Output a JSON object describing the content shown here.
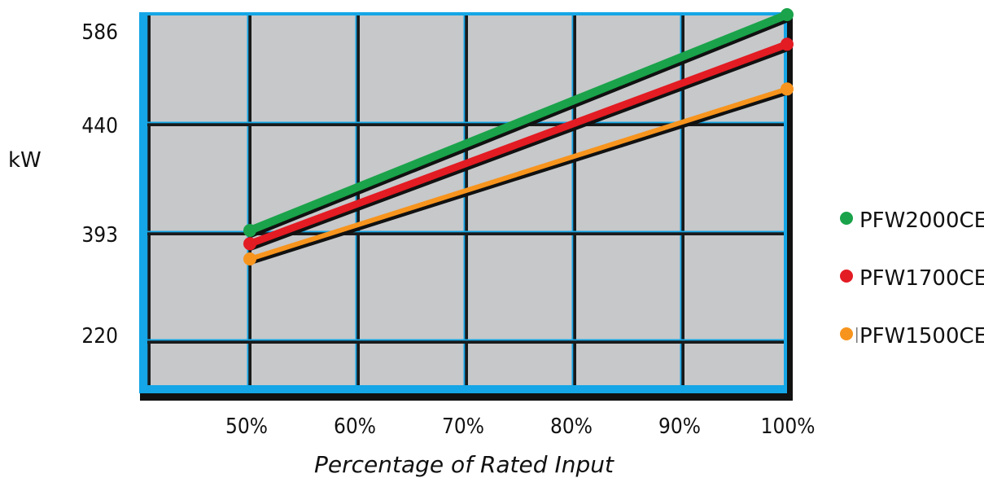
{
  "chart_data": {
    "type": "line",
    "title": "",
    "xlabel": "Percentage of Rated Input",
    "ylabel": "kW",
    "x_ticks": [
      "50%",
      "60%",
      "70%",
      "80%",
      "90%",
      "100%"
    ],
    "y_ticks": [
      "586",
      "440",
      "393",
      "220"
    ],
    "grid": true,
    "legend_position": "right",
    "series": [
      {
        "name": "PFW2000CE",
        "color": "#1aa34a",
        "x": [
          50,
          100
        ],
        "y": [
          380,
          592
        ]
      },
      {
        "name": "PFW1700CE",
        "color": "#e31b23",
        "x": [
          50,
          100
        ],
        "y": [
          367,
          563
        ]
      },
      {
        "name": "PFW1500CE",
        "color": "#f7941d",
        "x": [
          50,
          100
        ],
        "y": [
          352,
          519
        ]
      }
    ]
  }
}
